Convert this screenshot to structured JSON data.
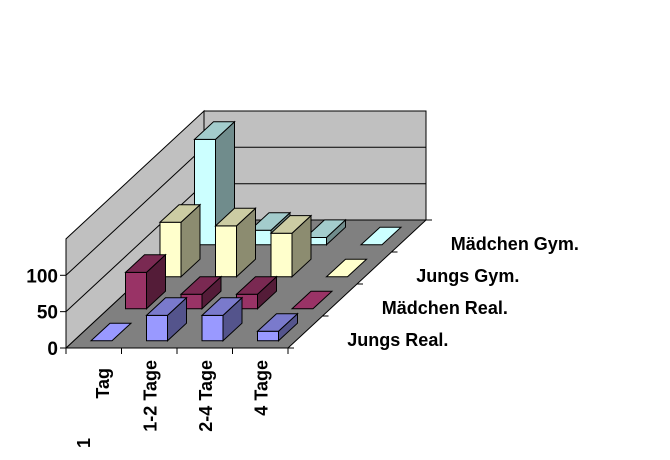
{
  "chart_data": {
    "type": "bar",
    "subtype": "3d-column-deep",
    "categories": [
      "1 Tag",
      "1-2 Tage",
      "2-4 Tage",
      "4 Tage"
    ],
    "category_labels": [
      {
        "line1": "1",
        "line2": "Tag"
      },
      {
        "line1": "1-2 Tage",
        "line2": ""
      },
      {
        "line1": "2-4 Tage",
        "line2": ""
      },
      {
        "line1": "4 Tage",
        "line2": ""
      }
    ],
    "series": [
      {
        "name": "Jungs Real.",
        "values": [
          0,
          35,
          35,
          13
        ]
      },
      {
        "name": "Mädchen Real.",
        "values": [
          50,
          20,
          20,
          0
        ]
      },
      {
        "name": "Jungs Gym.",
        "values": [
          75,
          70,
          60,
          0
        ]
      },
      {
        "name": "Mädchen Gym.",
        "values": [
          145,
          20,
          10,
          0
        ]
      }
    ],
    "ylim": [
      0,
      150
    ],
    "y_ticks": [
      "0",
      "50",
      "100"
    ],
    "grid": true,
    "colors": {
      "series": [
        "#9999ff",
        "#993366",
        "#ffffcc",
        "#ccffff"
      ],
      "walls": "#c0c0c0",
      "floor": "#808080"
    }
  }
}
